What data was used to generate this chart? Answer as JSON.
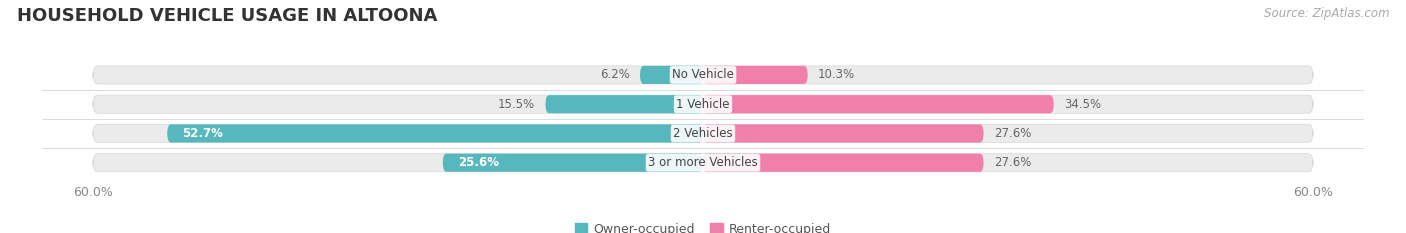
{
  "title": "HOUSEHOLD VEHICLE USAGE IN ALTOONA",
  "source": "Source: ZipAtlas.com",
  "categories": [
    "No Vehicle",
    "1 Vehicle",
    "2 Vehicles",
    "3 or more Vehicles"
  ],
  "owner_values": [
    6.2,
    15.5,
    52.7,
    25.6
  ],
  "renter_values": [
    10.3,
    34.5,
    27.6,
    27.6
  ],
  "owner_color": "#56b8bc",
  "renter_color": "#f080aa",
  "owner_label": "Owner-occupied",
  "renter_label": "Renter-occupied",
  "background_color": "#ffffff",
  "bar_bg_color": "#ebebeb",
  "title_fontsize": 13,
  "source_fontsize": 8.5,
  "label_fontsize": 8.5,
  "category_fontsize": 8.5,
  "legend_fontsize": 9,
  "bar_height": 0.62,
  "bar_spacing": 1.0,
  "xlim_left": -65,
  "xlim_right": 65,
  "axis_range": 60
}
